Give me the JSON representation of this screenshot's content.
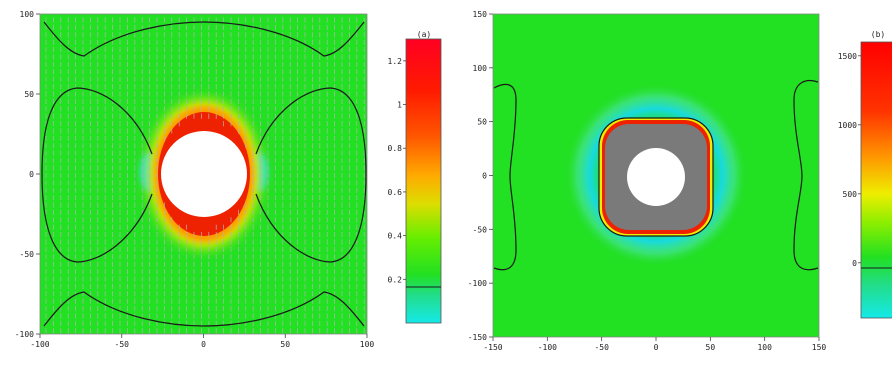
{
  "chart_data": [
    {
      "type": "heatmap",
      "panel_label": "(a)",
      "x_range": [
        -100,
        100
      ],
      "y_range": [
        -100,
        100
      ],
      "x_ticks": [
        "-100",
        "-50",
        "0",
        "50",
        "100"
      ],
      "y_ticks": [
        "100",
        "50",
        "0",
        "-50",
        "-100"
      ],
      "colorbar": {
        "range": [
          0.0,
          1.3
        ],
        "ticks": [
          "1.2",
          "1",
          "0.8",
          "0.6",
          "0.4",
          "0.2"
        ],
        "marked_contour_value": 0.2
      },
      "background_level": 0.25,
      "hole_radius": 27,
      "vector_field": true
    },
    {
      "type": "heatmap",
      "panel_label": "(b)",
      "x_range": [
        -150,
        150
      ],
      "y_range": [
        -150,
        150
      ],
      "x_ticks": [
        "-150",
        "-100",
        "-50",
        "0",
        "50",
        "100",
        "150"
      ],
      "y_ticks": [
        "150",
        "100",
        "50",
        "0",
        "-50",
        "-100",
        "-150"
      ],
      "colorbar": {
        "range": [
          -400,
          1600
        ],
        "ticks": [
          "1500",
          "1000",
          "500",
          "0"
        ],
        "marked_contour_value": 0
      },
      "background_level": 0,
      "hole_radius": 27,
      "core_half_width": 52
    }
  ],
  "colors": {
    "background": "#22e022",
    "hole": "#ffffff",
    "core": "#7a7a7a",
    "contour": "#1a1a1a",
    "arrow": "#b4b4b4",
    "colorbar_stops": [
      "#15e9e9",
      "#22cc66",
      "#22e022",
      "#88ee00",
      "#eeee00",
      "#ff9900",
      "#ff3300",
      "#ff0000",
      "#ff0033"
    ]
  }
}
